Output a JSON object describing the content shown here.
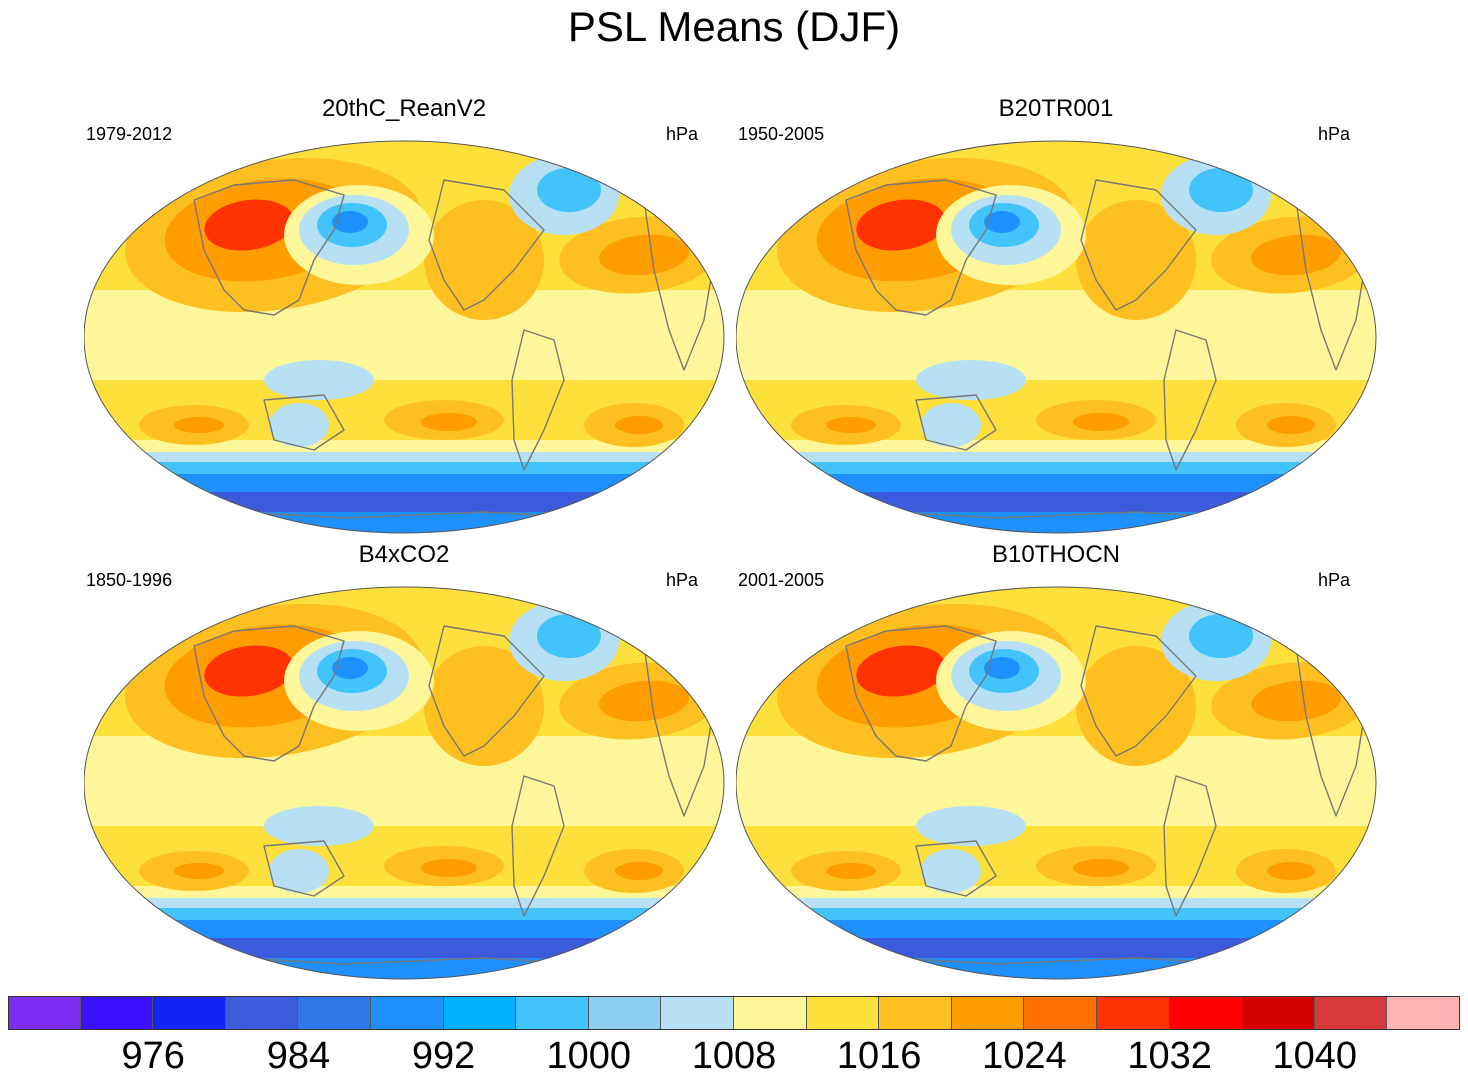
{
  "title": "PSL Means (DJF)",
  "panels": [
    {
      "name": "20thC_ReanV2",
      "period": "1979-2012",
      "units": "hPa"
    },
    {
      "name": "B20TR001",
      "period": "1950-2005",
      "units": "hPa"
    },
    {
      "name": "B4xCO2",
      "period": "1850-1996",
      "units": "hPa"
    },
    {
      "name": "B10THOCN",
      "period": "2001-2005",
      "units": "hPa"
    }
  ],
  "colorbar": {
    "colors": [
      "#7b2cf0",
      "#3a10ff",
      "#1424f2",
      "#3c5adc",
      "#2e78ea",
      "#1e90ff",
      "#00b0ff",
      "#42c4fa",
      "#8ecef0",
      "#b8e0f5",
      "#fef79a",
      "#fee03c",
      "#fec020",
      "#fe9c00",
      "#fe7000",
      "#fe3300",
      "#fe0000",
      "#d60000",
      "#d83a3a",
      "#feb4b4"
    ],
    "labels": [
      "976",
      "984",
      "992",
      "1000",
      "1008",
      "1016",
      "1024",
      "1032",
      "1040"
    ],
    "units": "hPa"
  },
  "field_colors": {
    "equator_yellow": "#fef79a",
    "subtropical_gold": "#fee03c",
    "high_orange": "#fec020",
    "strong_orange": "#fe9c00",
    "siberian_red": "#fe3300",
    "low_light_blue": "#b8e0f5",
    "low_mid_blue": "#42c4fa",
    "low_deep_blue": "#1e90ff",
    "antarctic_blue": "#3c5adc",
    "coast_gray": "#777777"
  }
}
